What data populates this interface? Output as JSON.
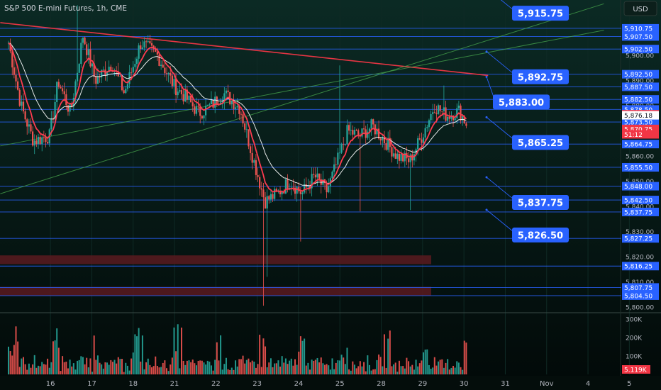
{
  "header": {
    "title": "S&P 500 E-mini Futures, 1h, CME",
    "currency": "USD"
  },
  "colors": {
    "background": "#061612",
    "up": "#26a69a",
    "down": "#ef5350",
    "level_line": "#2962ff",
    "callout": "#2962ff",
    "trendline_red": "#f23645",
    "channel_green": "#4caf50",
    "ema_fast": "#ff3b4f",
    "ema_slow": "#ffffff",
    "zone": "#5a1a20"
  },
  "chart_data": [
    {
      "type": "candlestick",
      "title": "S&P 500 E-mini Futures, 1h, CME",
      "y_axis": {
        "min": 5798,
        "max": 5922,
        "tick_labels": [
          "5,800.00",
          "5,810.00",
          "5,820.00",
          "5,830.00",
          "5,840.00",
          "5,850.00",
          "5,860.00",
          "5,870.00",
          "5,880.00",
          "5,890.00",
          "5,900.00",
          "5,910.00"
        ],
        "tick_values": [
          5800,
          5810,
          5820,
          5830,
          5840,
          5850,
          5860,
          5870,
          5880,
          5890,
          5900,
          5910
        ]
      },
      "x_axis": {
        "labels": [
          "16",
          "17",
          "18",
          "21",
          "22",
          "23",
          "24",
          "25",
          "28",
          "29",
          "30",
          "31",
          "Nov",
          "4",
          "5"
        ],
        "positions": [
          0.5,
          1.5,
          2.5,
          3.5,
          4.5,
          5.5,
          6.5,
          7.5,
          8.5,
          9.5,
          10.5,
          11.5,
          12.5,
          13.5,
          14.5
        ]
      },
      "price_levels": [
        {
          "label": "5,910.75",
          "value": 5910.75
        },
        {
          "label": "5,907.50",
          "value": 5907.5
        },
        {
          "label": "5,902.50",
          "value": 5902.5
        },
        {
          "label": "5,892.50",
          "value": 5892.5
        },
        {
          "label": "5,887.50",
          "value": 5887.5
        },
        {
          "label": "5,882.50",
          "value": 5882.5
        },
        {
          "label": "5,878.50",
          "value": 5878.5
        },
        {
          "label": "5,873.50",
          "value": 5873.5
        },
        {
          "label": "5,864.75",
          "value": 5864.75
        },
        {
          "label": "5,855.50",
          "value": 5855.5
        },
        {
          "label": "5,848.00",
          "value": 5848.0
        },
        {
          "label": "5,842.50",
          "value": 5842.5
        },
        {
          "label": "5,837.75",
          "value": 5837.75
        },
        {
          "label": "5,827.25",
          "value": 5827.25
        },
        {
          "label": "5,816.25",
          "value": 5816.25
        },
        {
          "label": "5,807.75",
          "value": 5807.75
        },
        {
          "label": "5,804.50",
          "value": 5804.5
        }
      ],
      "axis_badges": [
        {
          "label": "5,876.59",
          "value": 5876.59,
          "color": "#f23645",
          "text_color": "#ffffff"
        },
        {
          "label": "5,876.18",
          "value": 5876.18,
          "color": "#ffffff",
          "text_color": "#131722"
        },
        {
          "label": "5,870.75",
          "value": 5870.75,
          "color": "#f23645",
          "text_color": "#ffffff"
        },
        {
          "label": "51:12",
          "value": 5868.6,
          "color": "#f23645",
          "text_color": "#ffffff"
        }
      ],
      "callouts": [
        {
          "label": "5,915.75",
          "value": 5915.75
        },
        {
          "label": "5,892.75",
          "value": 5892.75
        },
        {
          "label": "5,883.00",
          "value": 5883.0
        },
        {
          "label": "5,865.25",
          "value": 5865.25
        },
        {
          "label": "5,837.75",
          "value": 5837.75
        },
        {
          "label": "5,826.50",
          "value": 5826.5
        }
      ],
      "zones": [
        {
          "from": 5817.0,
          "to": 5820.5
        },
        {
          "from": 5804.5,
          "to": 5808.0
        }
      ],
      "trendlines": [
        {
          "color": "red",
          "from": {
            "day": -0.2,
            "price": 5913.0
          },
          "to": {
            "day": 11.6,
            "price": 5892.0
          }
        },
        {
          "color": "green",
          "from": {
            "day": -0.2,
            "price": 5864.0
          },
          "to": {
            "day": 14.4,
            "price": 5910.0
          }
        },
        {
          "color": "green",
          "from": {
            "day": -0.2,
            "price": 5845.0
          },
          "to": {
            "day": 14.4,
            "price": 5920.5
          }
        }
      ],
      "candles_keypoints": [
        {
          "day": 0.0,
          "price": 5905
        },
        {
          "day": 0.3,
          "price": 5880
        },
        {
          "day": 0.6,
          "price": 5866
        },
        {
          "day": 1.0,
          "price": 5868
        },
        {
          "day": 1.2,
          "price": 5890
        },
        {
          "day": 1.5,
          "price": 5877
        },
        {
          "day": 1.8,
          "price": 5908
        },
        {
          "day": 2.1,
          "price": 5890
        },
        {
          "day": 2.5,
          "price": 5897
        },
        {
          "day": 2.8,
          "price": 5885
        },
        {
          "day": 3.2,
          "price": 5905
        },
        {
          "day": 3.6,
          "price": 5900
        },
        {
          "day": 4.0,
          "price": 5888
        },
        {
          "day": 4.3,
          "price": 5883
        },
        {
          "day": 4.6,
          "price": 5877
        },
        {
          "day": 4.9,
          "price": 5880
        },
        {
          "day": 5.2,
          "price": 5885
        },
        {
          "day": 5.6,
          "price": 5879
        },
        {
          "day": 5.9,
          "price": 5860
        },
        {
          "day": 6.2,
          "price": 5842
        },
        {
          "day": 6.5,
          "price": 5845
        },
        {
          "day": 6.8,
          "price": 5850
        },
        {
          "day": 7.1,
          "price": 5845
        },
        {
          "day": 7.4,
          "price": 5852
        },
        {
          "day": 7.7,
          "price": 5846
        },
        {
          "day": 8.0,
          "price": 5860
        },
        {
          "day": 8.2,
          "price": 5870
        },
        {
          "day": 8.5,
          "price": 5868
        },
        {
          "day": 8.8,
          "price": 5872
        },
        {
          "day": 9.1,
          "price": 5866
        },
        {
          "day": 9.4,
          "price": 5860
        },
        {
          "day": 9.7,
          "price": 5858
        },
        {
          "day": 10.0,
          "price": 5868
        },
        {
          "day": 10.3,
          "price": 5880
        },
        {
          "day": 10.6,
          "price": 5876
        },
        {
          "day": 10.9,
          "price": 5878
        },
        {
          "day": 11.1,
          "price": 5872
        }
      ],
      "volume": {
        "ticks": [
          {
            "label": "300K",
            "value": 300000
          },
          {
            "label": "200K",
            "value": 200000
          },
          {
            "label": "100K",
            "value": 100000
          }
        ],
        "current_label": "5.119K",
        "max": 330000
      }
    }
  ]
}
